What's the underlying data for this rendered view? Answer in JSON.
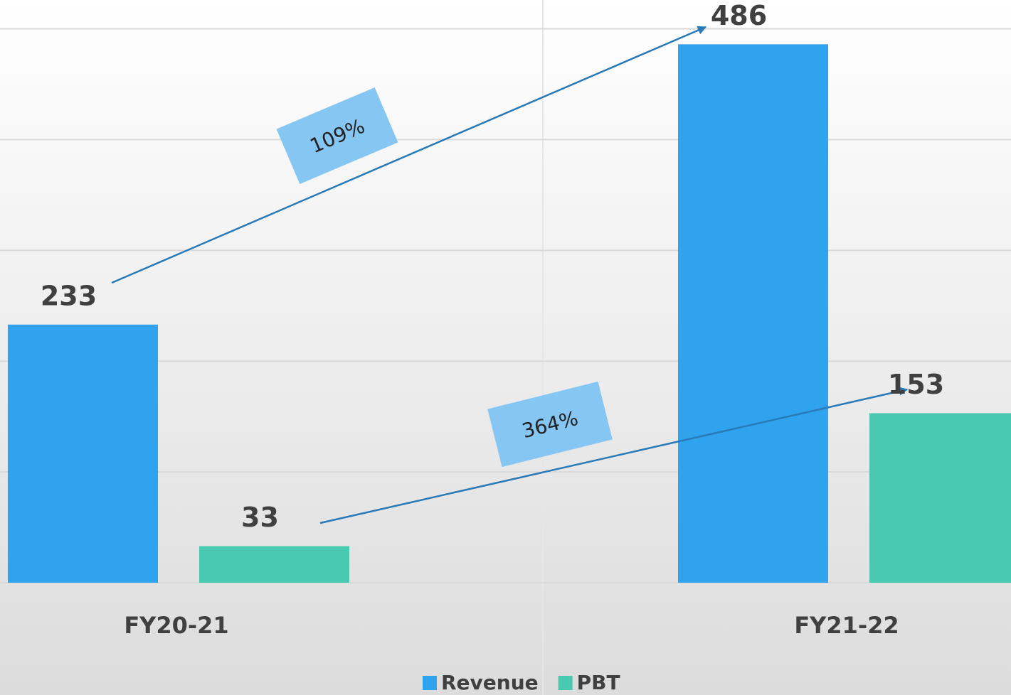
{
  "chart_data": {
    "type": "bar",
    "categories": [
      "FY20-21",
      "FY21-22"
    ],
    "series": [
      {
        "name": "Revenue",
        "color": "#2fa3ee",
        "values": [
          233,
          486
        ]
      },
      {
        "name": "PBT",
        "color": "#48c9b0",
        "values": [
          33,
          153
        ]
      }
    ],
    "annotations": [
      "109%",
      "364%"
    ],
    "ylim": [
      0,
      526
    ],
    "yticks": [
      0,
      100,
      200,
      300,
      400,
      500
    ],
    "grid": true,
    "legend": "bottom"
  }
}
